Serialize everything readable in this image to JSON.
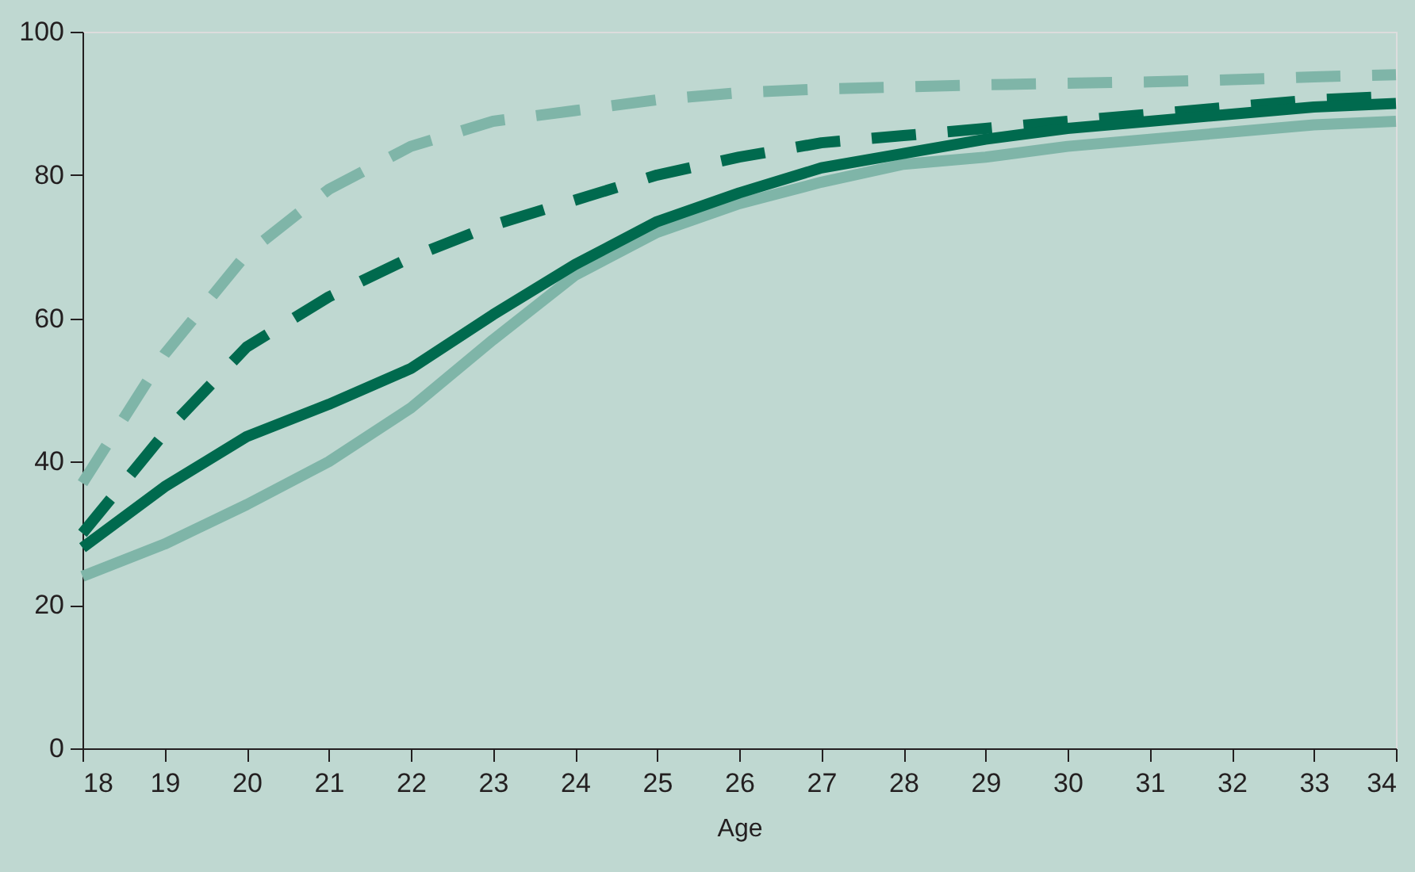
{
  "chart_data": {
    "type": "line",
    "xlabel": "Age",
    "x": [
      18,
      19,
      20,
      21,
      22,
      23,
      24,
      25,
      26,
      27,
      28,
      29,
      30,
      31,
      32,
      33,
      34
    ],
    "xlim": [
      18,
      34
    ],
    "xticks": [
      18,
      19,
      20,
      21,
      22,
      23,
      24,
      25,
      26,
      27,
      28,
      29,
      30,
      31,
      32,
      33,
      34
    ],
    "ylim": [
      0,
      100
    ],
    "yticks": [
      0,
      20,
      40,
      60,
      80,
      100
    ],
    "grid": false,
    "legend": false,
    "marker": "none",
    "series": [
      {
        "color": "#7fb5a8",
        "line_style": "dashed",
        "values": [
          37,
          55,
          69,
          78,
          84,
          87.5,
          89,
          90.5,
          91.5,
          92,
          92.3,
          92.6,
          92.8,
          93,
          93.3,
          93.7,
          94
        ]
      },
      {
        "color": "#006a4e",
        "line_style": "dashed",
        "values": [
          30,
          44,
          56,
          63,
          68.5,
          73,
          76.5,
          80,
          82.5,
          84.5,
          85.5,
          86.5,
          87.5,
          88.5,
          89.5,
          90.5,
          91
        ]
      },
      {
        "color": "#7fb5a8",
        "line_style": "solid",
        "values": [
          24,
          28.5,
          34,
          40,
          47.5,
          57,
          66,
          72,
          76,
          79,
          81.5,
          82.5,
          84,
          85,
          86,
          87,
          87.5
        ]
      },
      {
        "color": "#006a4e",
        "line_style": "solid",
        "values": [
          28,
          36.5,
          43.5,
          48,
          53,
          60.5,
          67.5,
          73.5,
          77.5,
          81,
          83,
          85,
          86.5,
          87.5,
          88.5,
          89.5,
          90
        ]
      }
    ]
  }
}
